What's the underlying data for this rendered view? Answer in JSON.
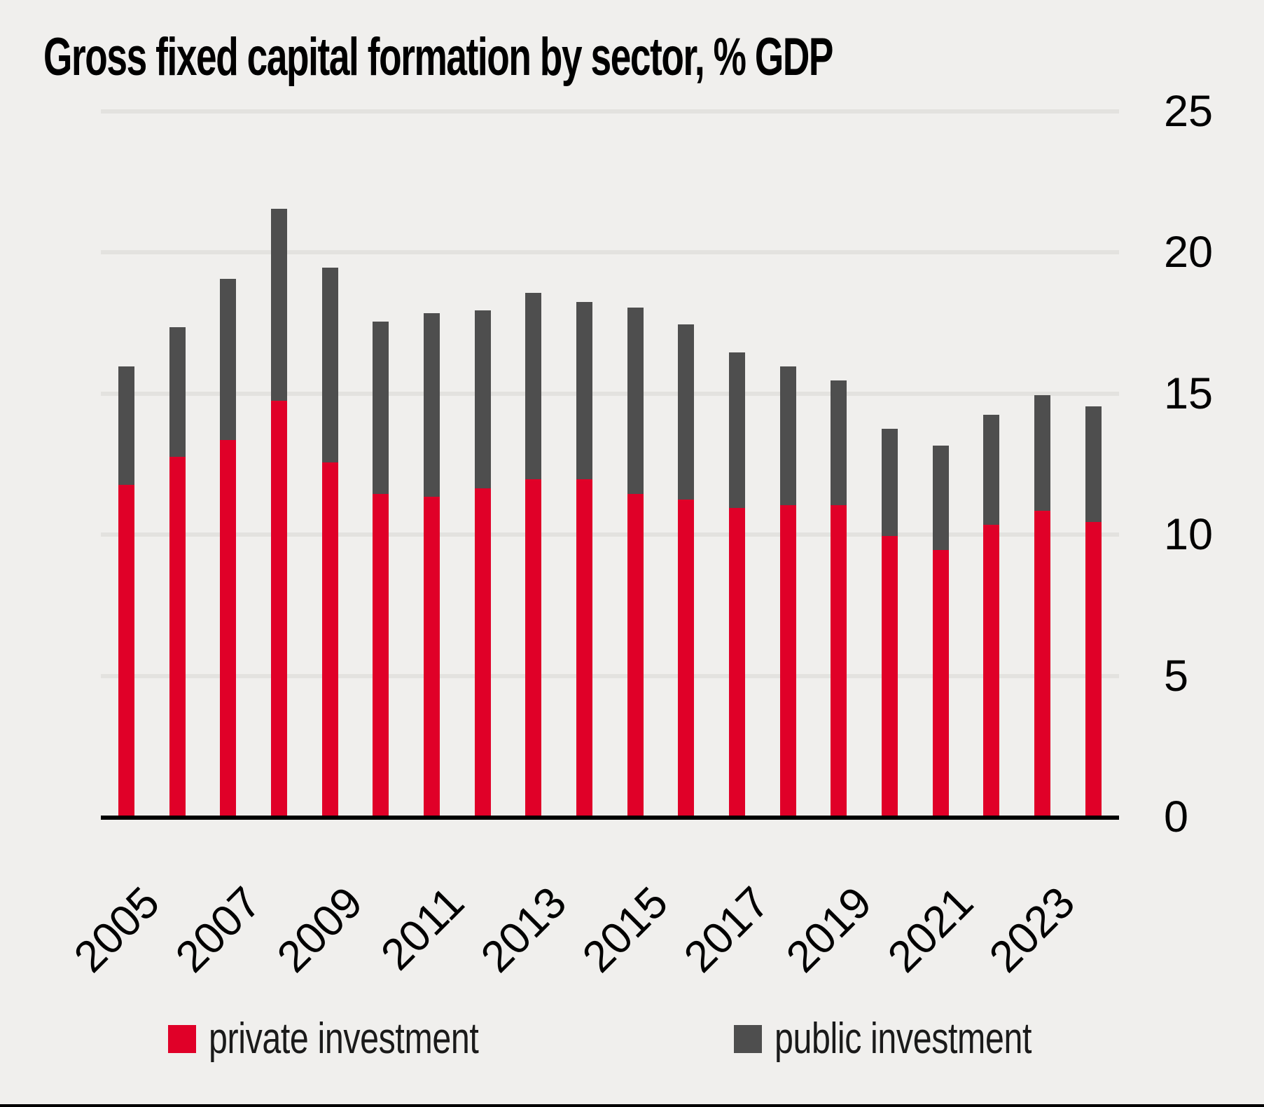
{
  "title": "Gross fixed capital formation by sector, % GDP",
  "colors": {
    "private": "#e00028",
    "public": "#4e4e4e",
    "background": "#f0efed",
    "gridline": "#e3e2df",
    "axis": "#000000",
    "text": "#000000"
  },
  "y_axis": {
    "ticks": [
      0,
      5,
      10,
      15,
      20,
      25
    ]
  },
  "x_axis": {
    "tick_labels": [
      "2005",
      "2007",
      "2009",
      "2011",
      "2013",
      "2015",
      "2017",
      "2019",
      "2021",
      "2023"
    ]
  },
  "legend": {
    "items": [
      {
        "label": "private investment",
        "color_key": "private"
      },
      {
        "label": "public investment",
        "color_key": "public"
      }
    ]
  },
  "chart_data": {
    "type": "bar",
    "stacked": true,
    "title": "Gross fixed capital formation by sector, % GDP",
    "categories": [
      2005,
      2006,
      2007,
      2008,
      2009,
      2010,
      2011,
      2012,
      2013,
      2014,
      2015,
      2016,
      2017,
      2018,
      2019,
      2020,
      2021,
      2022,
      2023,
      2024
    ],
    "series": [
      {
        "name": "private investment",
        "color": "#e00028",
        "values": [
          11.7,
          12.7,
          13.3,
          14.7,
          12.5,
          11.4,
          11.3,
          11.6,
          11.9,
          11.9,
          11.4,
          11.2,
          10.9,
          11.0,
          11.0,
          9.9,
          9.4,
          10.3,
          10.8,
          10.4
        ]
      },
      {
        "name": "public investment",
        "color": "#4e4e4e",
        "values": [
          4.2,
          4.6,
          5.7,
          6.8,
          6.9,
          6.1,
          6.5,
          6.3,
          6.6,
          6.3,
          6.6,
          6.2,
          5.5,
          4.9,
          4.4,
          3.8,
          3.7,
          3.9,
          4.1,
          4.1
        ]
      }
    ],
    "totals": [
      15.9,
      17.3,
      19.0,
      21.5,
      19.4,
      17.5,
      17.8,
      17.9,
      18.5,
      18.2,
      18.0,
      17.4,
      16.4,
      15.9,
      15.4,
      13.7,
      13.1,
      14.2,
      14.9,
      14.5
    ],
    "ylabel": "% GDP",
    "ylim": [
      0,
      25
    ],
    "y_ticks": [
      0,
      5,
      10,
      15,
      20,
      25
    ],
    "x_tick_step": 2,
    "grid": true,
    "legend_position": "bottom"
  }
}
